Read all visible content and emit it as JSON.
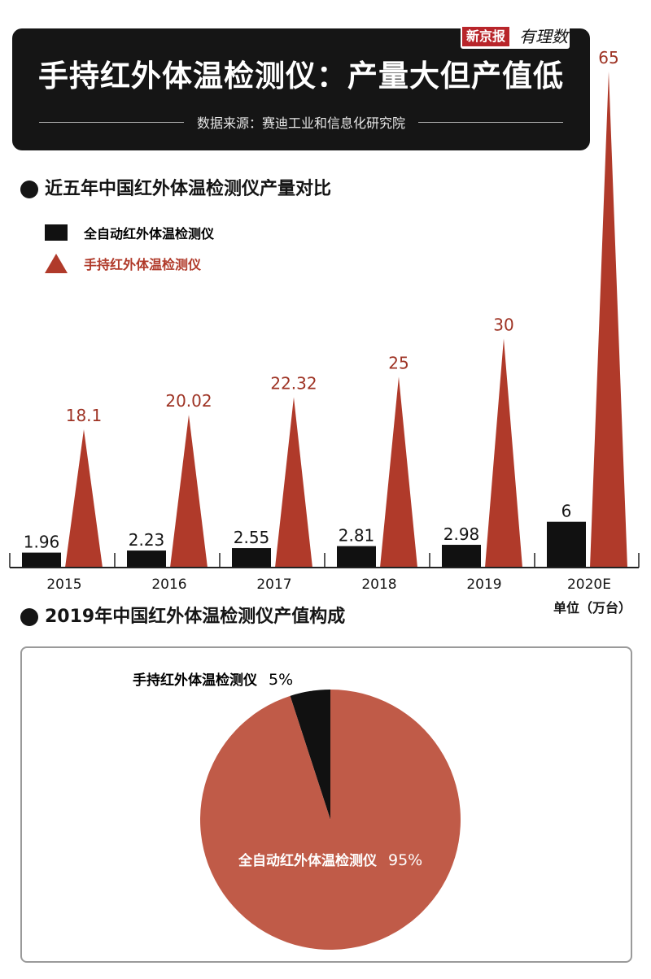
{
  "header": {
    "logo_brand": "新京报",
    "logo_column": "有理数",
    "title": "手持红外体温检测仪：产量大但产值低",
    "source": "数据来源：赛迪工业和信息化研究院"
  },
  "section1": {
    "title": "近五年中国红外体温检测仪产量对比"
  },
  "section2": {
    "title": "2019年中国红外体温检测仪产值构成"
  },
  "unit_label": "单位（万台）",
  "colors": {
    "automatic": "#111111",
    "handheld": "#b03a2a",
    "handheld_pie": "#c05b48",
    "handheld_text": "#9e3324"
  },
  "chart_data": [
    {
      "type": "bar",
      "title": "近五年中国红外体温检测仪产量对比",
      "categories": [
        "2015",
        "2016",
        "2017",
        "2018",
        "2019",
        "2020E"
      ],
      "series": [
        {
          "name": "全自动红外体温检测仪",
          "values": [
            1.96,
            2.23,
            2.55,
            2.81,
            2.98,
            6
          ]
        },
        {
          "name": "手持红外体温检测仪",
          "values": [
            18.1,
            20.02,
            22.32,
            25,
            30,
            65
          ]
        }
      ],
      "value_labels": {
        "全自动红外体温检测仪": [
          "1.96",
          "2.23",
          "2.55",
          "2.81",
          "2.98",
          "6"
        ],
        "手持红外体温检测仪": [
          "18.1",
          "20.02",
          "22.32",
          "25",
          "30",
          "65"
        ]
      },
      "ylabel": "单位（万台）",
      "ylim": [
        0,
        65
      ],
      "grid": false,
      "legend": "top-left"
    },
    {
      "type": "pie",
      "title": "2019年中国红外体温检测仪产值构成",
      "labels": [
        "手持红外体温检测仪",
        "全自动红外体温检测仪"
      ],
      "values": [
        5,
        95
      ],
      "value_labels": [
        "5%",
        "95%"
      ]
    }
  ]
}
